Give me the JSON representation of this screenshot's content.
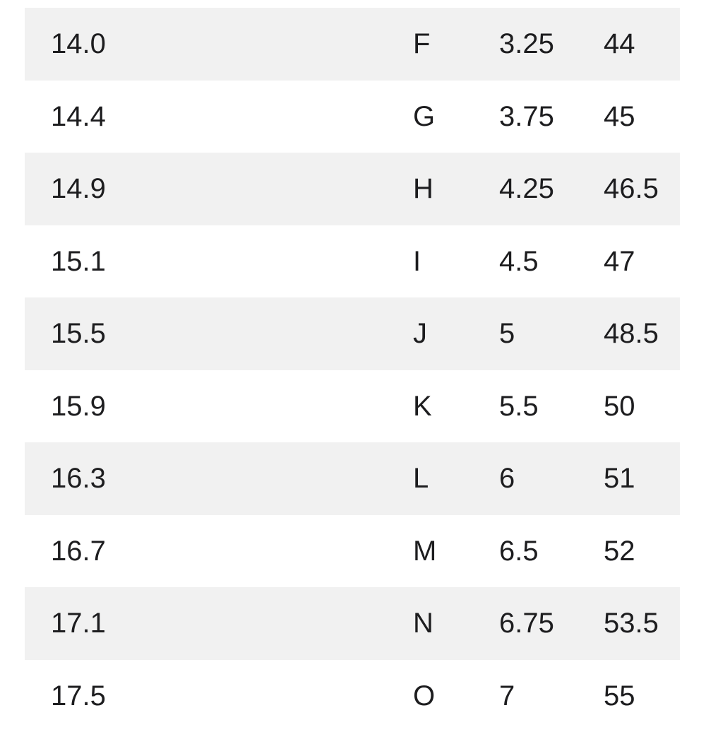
{
  "page": {
    "background_color": "#ffffff"
  },
  "table": {
    "row_alt_color": "#f1f1f1",
    "text_color": "#1d1d1f",
    "rows": [
      [
        "14.0",
        "F",
        "3.25",
        "44"
      ],
      [
        "14.4",
        "G",
        "3.75",
        "45"
      ],
      [
        "14.9",
        "H",
        "4.25",
        "46.5"
      ],
      [
        "15.1",
        "I",
        "4.5",
        "47"
      ],
      [
        "15.5",
        "J",
        "5",
        "48.5"
      ],
      [
        "15.9",
        "K",
        "5.5",
        "50"
      ],
      [
        "16.3",
        "L",
        "6",
        "51"
      ],
      [
        "16.7",
        "M",
        "6.5",
        "52"
      ],
      [
        "17.1",
        "N",
        "6.75",
        "53.5"
      ],
      [
        "17.5",
        "O",
        "7",
        "55"
      ]
    ]
  }
}
